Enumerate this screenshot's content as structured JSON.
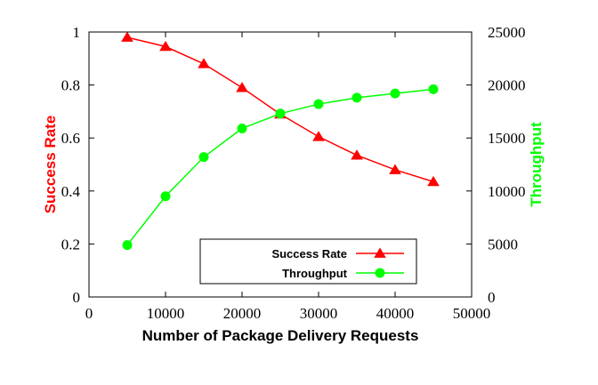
{
  "chart_data": {
    "type": "line",
    "title": "",
    "xlabel": "Number of Package Delivery Requests",
    "ylabel_left": "Success Rate",
    "ylabel_right": "Throughput",
    "xlim": [
      0,
      50000
    ],
    "ylim_left": [
      0,
      1
    ],
    "ylim_right": [
      0,
      25000
    ],
    "x_ticks": [
      "0",
      "10000",
      "20000",
      "30000",
      "40000",
      "50000"
    ],
    "y_left_ticks": [
      "0",
      "0.2",
      "0.4",
      "0.6",
      "0.8",
      "1"
    ],
    "y_right_ticks": [
      "0",
      "5000",
      "10000",
      "15000",
      "20000",
      "25000"
    ],
    "grid": false,
    "legend_position": "bottom-right",
    "x": [
      5000,
      10000,
      15000,
      20000,
      25000,
      30000,
      35000,
      40000,
      45000
    ],
    "series": [
      {
        "name": "Success Rate",
        "axis": "left",
        "color": "#ff0000",
        "marker": "triangle",
        "values": [
          0.98,
          0.945,
          0.88,
          0.79,
          0.69,
          0.605,
          0.535,
          0.48,
          0.435
        ]
      },
      {
        "name": "Throughput",
        "axis": "right",
        "color": "#00ff00",
        "marker": "circle",
        "values": [
          4900,
          9500,
          13200,
          15900,
          17300,
          18200,
          18800,
          19200,
          19600
        ]
      }
    ]
  }
}
